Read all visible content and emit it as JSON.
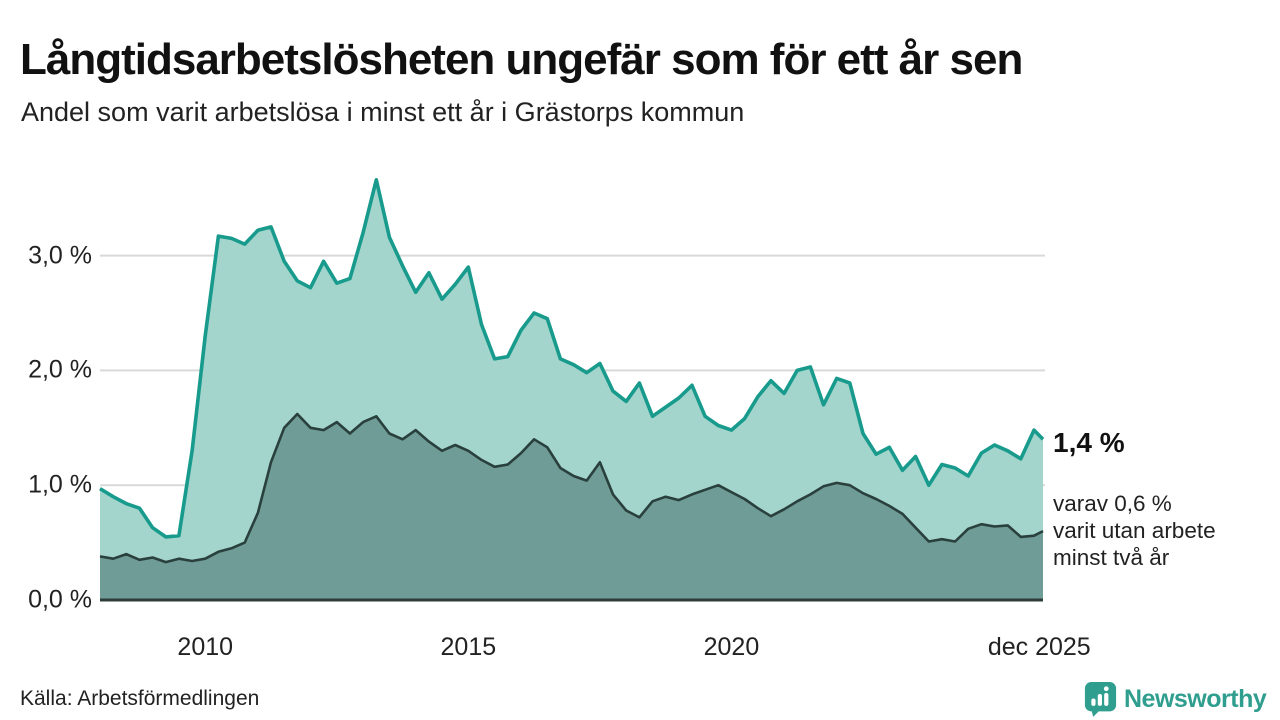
{
  "header": {
    "title": "Långtidsarbetslösheten ungefär som för ett år sen",
    "subtitle": "Andel som varit arbetslösa i minst ett år i Grästorps kommun"
  },
  "annotations": {
    "latest_value": "1,4 %",
    "secondary": [
      "varav 0,6 %",
      "varit utan arbete",
      "minst två år"
    ]
  },
  "footer": {
    "source": "Källa: Arbetsförmedlingen",
    "brand": "Newsworthy"
  },
  "colors": {
    "series1_line": "#189b8c",
    "series1_fill": "#a3d5cd",
    "series2_line": "#2a403d",
    "series2_fill": "#6f9c96",
    "gridline": "#d9d9d9",
    "baseline": "#2e3d3a",
    "brand_teal": "#2f9e8e",
    "text_dark": "#111111",
    "text_gray": "#222222"
  },
  "chart_data": {
    "type": "area",
    "title": "Långtidsarbetslösheten ungefär som för ett år sen",
    "subtitle": "Andel som varit arbetslösa i minst ett år i Grästorps kommun",
    "grid": true,
    "legend_position": "none",
    "xlim": [
      2008,
      2025.92
    ],
    "ylim": [
      0,
      3.8
    ],
    "y_ticks": [
      {
        "label": "3,0 %",
        "value": 3.0
      },
      {
        "label": "2,0 %",
        "value": 2.0
      },
      {
        "label": "1,0 %",
        "value": 1.0
      },
      {
        "label": "0,0 %",
        "value": 0.0
      }
    ],
    "x_ticks": [
      {
        "label": "2010",
        "year": 2010
      },
      {
        "label": "2015",
        "year": 2015
      },
      {
        "label": "2020",
        "year": 2020
      },
      {
        "label": "dec 2025",
        "year": 2025.85
      }
    ],
    "x": [
      2008,
      2008.25,
      2008.5,
      2008.75,
      2009,
      2009.25,
      2009.5,
      2009.75,
      2010,
      2010.25,
      2010.5,
      2010.75,
      2011,
      2011.25,
      2011.5,
      2011.75,
      2012,
      2012.25,
      2012.5,
      2012.75,
      2013,
      2013.25,
      2013.5,
      2013.75,
      2014,
      2014.25,
      2014.5,
      2014.75,
      2015,
      2015.25,
      2015.5,
      2015.75,
      2016,
      2016.25,
      2016.5,
      2016.75,
      2017,
      2017.25,
      2017.5,
      2017.75,
      2018,
      2018.25,
      2018.5,
      2018.75,
      2019,
      2019.25,
      2019.5,
      2019.75,
      2020,
      2020.25,
      2020.5,
      2020.75,
      2021,
      2021.25,
      2021.5,
      2021.75,
      2022,
      2022.25,
      2022.5,
      2022.75,
      2023,
      2023.25,
      2023.5,
      2023.75,
      2024,
      2024.25,
      2024.5,
      2024.75,
      2025,
      2025.25,
      2025.5,
      2025.75,
      2025.92
    ],
    "series": [
      {
        "name": "Andel som varit arbetslösa i minst ett år",
        "end_label": "1,4 %",
        "values": [
          0.97,
          0.9,
          0.84,
          0.8,
          0.63,
          0.55,
          0.56,
          1.3,
          2.3,
          3.17,
          3.15,
          3.1,
          3.22,
          3.25,
          2.95,
          2.78,
          2.72,
          2.95,
          2.76,
          2.8,
          3.2,
          3.66,
          3.16,
          2.91,
          2.68,
          2.85,
          2.62,
          2.75,
          2.9,
          2.4,
          2.1,
          2.12,
          2.35,
          2.5,
          2.45,
          2.1,
          2.05,
          1.98,
          2.06,
          1.82,
          1.73,
          1.89,
          1.6,
          1.68,
          1.76,
          1.87,
          1.6,
          1.52,
          1.48,
          1.58,
          1.77,
          1.91,
          1.8,
          2.0,
          2.03,
          1.7,
          1.93,
          1.89,
          1.45,
          1.27,
          1.33,
          1.13,
          1.25,
          1.0,
          1.18,
          1.15,
          1.08,
          1.28,
          1.35,
          1.3,
          1.23,
          1.48,
          1.4
        ]
      },
      {
        "name": "varav utan arbete minst två år",
        "end_label": "0,6 %",
        "values": [
          0.38,
          0.36,
          0.4,
          0.35,
          0.37,
          0.33,
          0.36,
          0.34,
          0.36,
          0.42,
          0.45,
          0.5,
          0.76,
          1.2,
          1.5,
          1.62,
          1.5,
          1.48,
          1.55,
          1.45,
          1.55,
          1.6,
          1.45,
          1.4,
          1.48,
          1.38,
          1.3,
          1.35,
          1.3,
          1.22,
          1.16,
          1.18,
          1.28,
          1.4,
          1.33,
          1.15,
          1.08,
          1.04,
          1.2,
          0.92,
          0.78,
          0.72,
          0.86,
          0.9,
          0.87,
          0.92,
          0.96,
          1.0,
          0.94,
          0.88,
          0.8,
          0.73,
          0.79,
          0.86,
          0.92,
          0.99,
          1.02,
          1.0,
          0.93,
          0.88,
          0.82,
          0.75,
          0.63,
          0.51,
          0.53,
          0.51,
          0.62,
          0.66,
          0.64,
          0.65,
          0.55,
          0.56,
          0.6
        ]
      }
    ]
  }
}
